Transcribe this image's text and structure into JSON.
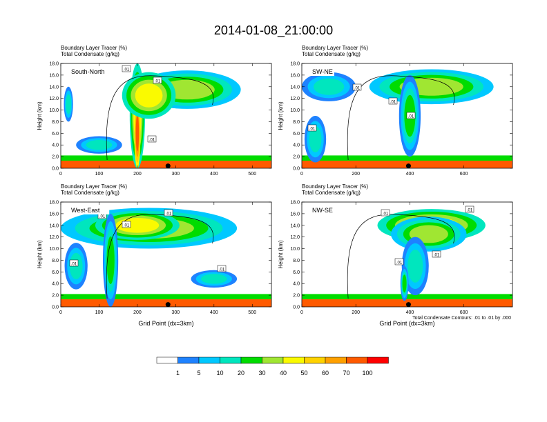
{
  "figure_title": "2014-01-08_21:00:00",
  "colors": {
    "levels": [
      "#ffffff",
      "#1e82ff",
      "#00c8ff",
      "#00e6be",
      "#00dc00",
      "#a0e632",
      "#fafa00",
      "#ffd200",
      "#ffa000",
      "#ff5a00",
      "#ff0000"
    ],
    "outline": "#000000"
  },
  "colorbar": {
    "labels": [
      "1",
      "5",
      "10",
      "20",
      "30",
      "40",
      "50",
      "60",
      "70",
      "100"
    ]
  },
  "footnote": "Total Condensate Contours: .01 to .01 by .000",
  "chart_data": [
    {
      "type": "heatmap",
      "panel_title": "South-North",
      "title_line1": "Boundary Layer Tracer    (%)",
      "title_line2": "Total Condensate    (g/kg)",
      "ylabel": "Height (km)",
      "xlabel": "",
      "ylim": [
        0,
        18
      ],
      "xlim": [
        0,
        550
      ],
      "yticks": [
        "0.0",
        "2.0",
        "4.0",
        "6.0",
        "8.0",
        "10.0",
        "12.0",
        "14.0",
        "16.0",
        "18.0"
      ],
      "xticks": [
        {
          "value": 0,
          "label": "0"
        },
        {
          "value": 100,
          "label": "100"
        },
        {
          "value": 200,
          "label": "200"
        },
        {
          "value": 300,
          "label": "300"
        },
        {
          "value": 400,
          "label": "400"
        },
        {
          "value": 500,
          "label": "500"
        }
      ],
      "marker_x": 280,
      "contour_labels": [
        ".01",
        ".01",
        ".01"
      ],
      "features": [
        {
          "kind": "layer",
          "x0": 0,
          "x1": 550,
          "z0": 0,
          "z1": 1.3,
          "level": 9
        },
        {
          "kind": "layer",
          "x0": 0,
          "x1": 550,
          "z0": 1.3,
          "z1": 2.2,
          "level": 4
        },
        {
          "kind": "blob",
          "x": 200,
          "z": 9,
          "rx": 20,
          "rz": 9,
          "level": 6
        },
        {
          "kind": "blob",
          "x": 200,
          "z": 6,
          "rx": 8,
          "rz": 6,
          "level": 9
        },
        {
          "kind": "blob",
          "x": 330,
          "z": 13.5,
          "rx": 140,
          "rz": 3.3,
          "level": 5
        },
        {
          "kind": "blob",
          "x": 230,
          "z": 12.5,
          "rx": 70,
          "rz": 4,
          "level": 6
        },
        {
          "kind": "blob",
          "x": 20,
          "z": 11,
          "rx": 12,
          "rz": 3,
          "level": 3
        },
        {
          "kind": "blob",
          "x": 100,
          "z": 4,
          "rx": 60,
          "rz": 1.5,
          "level": 3
        }
      ]
    },
    {
      "type": "heatmap",
      "panel_title": "SW-NE",
      "title_line1": "Boundary Layer Tracer    (%)",
      "title_line2": "Total Condensate    (g/kg)",
      "ylabel": "Height (km)",
      "xlabel": "",
      "ylim": [
        0,
        18
      ],
      "xlim": [
        0,
        780
      ],
      "yticks": [
        "0.0",
        "2.0",
        "4.0",
        "6.0",
        "8.0",
        "10.0",
        "12.0",
        "14.0",
        "16.0",
        "18.0"
      ],
      "xticks": [
        {
          "value": 0,
          "label": "0"
        },
        {
          "value": 200,
          "label": "200"
        },
        {
          "value": 400,
          "label": "400"
        },
        {
          "value": 600,
          "label": "600"
        }
      ],
      "marker_x": 395,
      "contour_labels": [
        ".01",
        ".01",
        ".01",
        ".01"
      ],
      "features": [
        {
          "kind": "layer",
          "x0": 0,
          "x1": 780,
          "z0": 0,
          "z1": 1.3,
          "level": 9
        },
        {
          "kind": "layer",
          "x0": 0,
          "x1": 780,
          "z0": 1.3,
          "z1": 2.2,
          "level": 4
        },
        {
          "kind": "blob",
          "x": 480,
          "z": 14,
          "rx": 230,
          "rz": 3,
          "level": 5
        },
        {
          "kind": "blob",
          "x": 400,
          "z": 9,
          "rx": 40,
          "rz": 7,
          "level": 4
        },
        {
          "kind": "blob",
          "x": 100,
          "z": 14,
          "rx": 100,
          "rz": 2.5,
          "level": 3
        },
        {
          "kind": "blob",
          "x": 50,
          "z": 5,
          "rx": 40,
          "rz": 4,
          "level": 3
        }
      ]
    },
    {
      "type": "heatmap",
      "panel_title": "West-East",
      "title_line1": "Boundary Layer Tracer    (%)",
      "title_line2": "Total Condensate    (g/kg)",
      "ylabel": "Height (km)",
      "xlabel": "Grid Point (dx=3km)",
      "ylim": [
        0,
        18
      ],
      "xlim": [
        0,
        550
      ],
      "yticks": [
        "0.0",
        "2.0",
        "4.0",
        "6.0",
        "8.0",
        "10.0",
        "12.0",
        "14.0",
        "16.0",
        "18.0"
      ],
      "xticks": [
        {
          "value": 0,
          "label": "0"
        },
        {
          "value": 100,
          "label": "100"
        },
        {
          "value": 200,
          "label": "200"
        },
        {
          "value": 300,
          "label": "300"
        },
        {
          "value": 400,
          "label": "400"
        },
        {
          "value": 500,
          "label": "500"
        }
      ],
      "marker_x": 280,
      "contour_labels": [
        ".01",
        ".01",
        ".01",
        ".01",
        ".01"
      ],
      "features": [
        {
          "kind": "layer",
          "x0": 0,
          "x1": 550,
          "z0": 0,
          "z1": 1.3,
          "level": 9
        },
        {
          "kind": "layer",
          "x0": 0,
          "x1": 550,
          "z0": 1.3,
          "z1": 2.2,
          "level": 4
        },
        {
          "kind": "blob",
          "x": 230,
          "z": 13.5,
          "rx": 230,
          "rz": 3.5,
          "level": 5
        },
        {
          "kind": "blob",
          "x": 200,
          "z": 14,
          "rx": 110,
          "rz": 2.5,
          "level": 6
        },
        {
          "kind": "blob",
          "x": 130,
          "z": 8,
          "rx": 20,
          "rz": 8,
          "level": 4
        },
        {
          "kind": "blob",
          "x": 40,
          "z": 7,
          "rx": 30,
          "rz": 4,
          "level": 3
        },
        {
          "kind": "blob",
          "x": 400,
          "z": 4.8,
          "rx": 60,
          "rz": 1.5,
          "level": 3
        }
      ]
    },
    {
      "type": "heatmap",
      "panel_title": "NW-SE",
      "title_line1": "Boundary Layer Tracer    (%)",
      "title_line2": "Total Condensate    (g/kg)",
      "ylabel": "Height (km)",
      "xlabel": "Grid Point (dx=3km)",
      "ylim": [
        0,
        18
      ],
      "xlim": [
        0,
        780
      ],
      "yticks": [
        "0.0",
        "2.0",
        "4.0",
        "6.0",
        "8.0",
        "10.0",
        "12.0",
        "14.0",
        "16.0",
        "18.0"
      ],
      "xticks": [
        {
          "value": 0,
          "label": "0"
        },
        {
          "value": 200,
          "label": "200"
        },
        {
          "value": 400,
          "label": "400"
        },
        {
          "value": 600,
          "label": "600"
        }
      ],
      "marker_x": 395,
      "contour_labels": [
        ".01",
        ".01",
        ".01",
        ".01"
      ],
      "features": [
        {
          "kind": "layer",
          "x0": 0,
          "x1": 780,
          "z0": 0,
          "z1": 1.3,
          "level": 9
        },
        {
          "kind": "layer",
          "x0": 0,
          "x1": 780,
          "z0": 1.3,
          "z1": 2.2,
          "level": 4
        },
        {
          "kind": "blob",
          "x": 480,
          "z": 14,
          "rx": 200,
          "rz": 2.8,
          "level": 6
        },
        {
          "kind": "blob",
          "x": 470,
          "z": 12.5,
          "rx": 140,
          "rz": 3,
          "level": 5
        },
        {
          "kind": "blob",
          "x": 420,
          "z": 7,
          "rx": 50,
          "rz": 5,
          "level": 3
        },
        {
          "kind": "blob",
          "x": 380,
          "z": 4,
          "rx": 15,
          "rz": 3,
          "level": 4
        }
      ]
    }
  ]
}
